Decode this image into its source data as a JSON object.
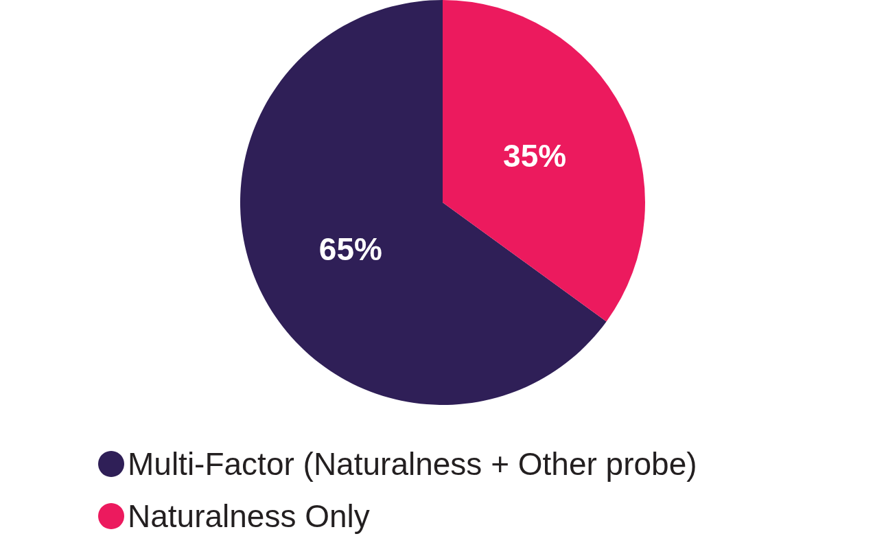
{
  "chart_data": {
    "type": "pie",
    "categories": [
      "Multi-Factor (Naturalness + Other probe)",
      "Naturalness Only"
    ],
    "values": [
      65,
      35
    ],
    "colors": [
      "#2f1f57",
      "#ec1a5e"
    ],
    "value_labels": [
      "65%",
      "35%"
    ],
    "legend": "bottom left"
  }
}
